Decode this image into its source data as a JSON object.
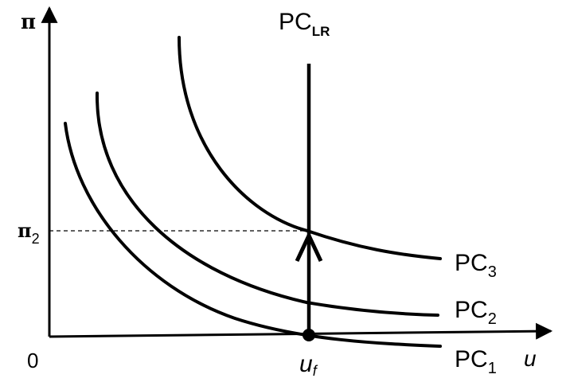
{
  "axes": {
    "y_label": "π",
    "x_label": "u",
    "origin_label": "0"
  },
  "markers": {
    "pi2_label": "π",
    "pi2_sub": "2",
    "uf_label": "u",
    "uf_sub": "f"
  },
  "curves": [
    {
      "id": "pc1",
      "label": "PC",
      "sub": "1"
    },
    {
      "id": "pc2",
      "label": "PC",
      "sub": "2"
    },
    {
      "id": "pc3",
      "label": "PC",
      "sub": "3"
    }
  ],
  "long_run": {
    "label": "PC",
    "sub": "LR"
  }
}
